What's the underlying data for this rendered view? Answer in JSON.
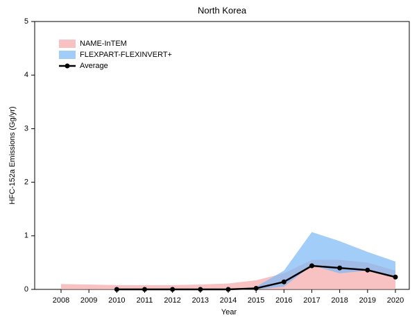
{
  "chart_data": {
    "type": "range-area",
    "title": "North Korea",
    "x_label": "Year",
    "y_label": "HFC-152a Emissions (Gg/yr)",
    "categories": [
      "2008",
      "2009",
      "2010",
      "2011",
      "2012",
      "2013",
      "2014",
      "2015",
      "2016",
      "2017",
      "2018",
      "2019",
      "2020"
    ],
    "ylim": [
      0,
      5
    ],
    "yticks": [
      0,
      1,
      2,
      3,
      4,
      5
    ],
    "legend": "top-left",
    "series": [
      {
        "name": "NAME-InTEM",
        "color": "#f7a8a8",
        "lower": [
          0,
          0,
          0,
          0,
          0,
          0,
          0,
          0,
          0,
          0,
          0,
          0,
          0
        ],
        "upper": [
          0.1,
          0.09,
          0.08,
          0.08,
          0.08,
          0.09,
          0.11,
          0.17,
          0.3,
          0.55,
          0.55,
          0.5,
          0.35
        ]
      },
      {
        "name": "FLEXPART-FLEXINVERT+",
        "color": "#7ab8f5",
        "lower": [
          null,
          null,
          null,
          null,
          null,
          null,
          null,
          0,
          0.05,
          0.45,
          0.3,
          0.35,
          0.25
        ],
        "upper": [
          null,
          null,
          null,
          null,
          null,
          null,
          null,
          0.05,
          0.35,
          1.07,
          0.9,
          0.7,
          0.52
        ]
      },
      {
        "name": "Average",
        "color": "#000000",
        "values": [
          null,
          null,
          0,
          0,
          0,
          0,
          0,
          0.02,
          0.14,
          0.44,
          0.4,
          0.36,
          0.23
        ]
      }
    ]
  }
}
